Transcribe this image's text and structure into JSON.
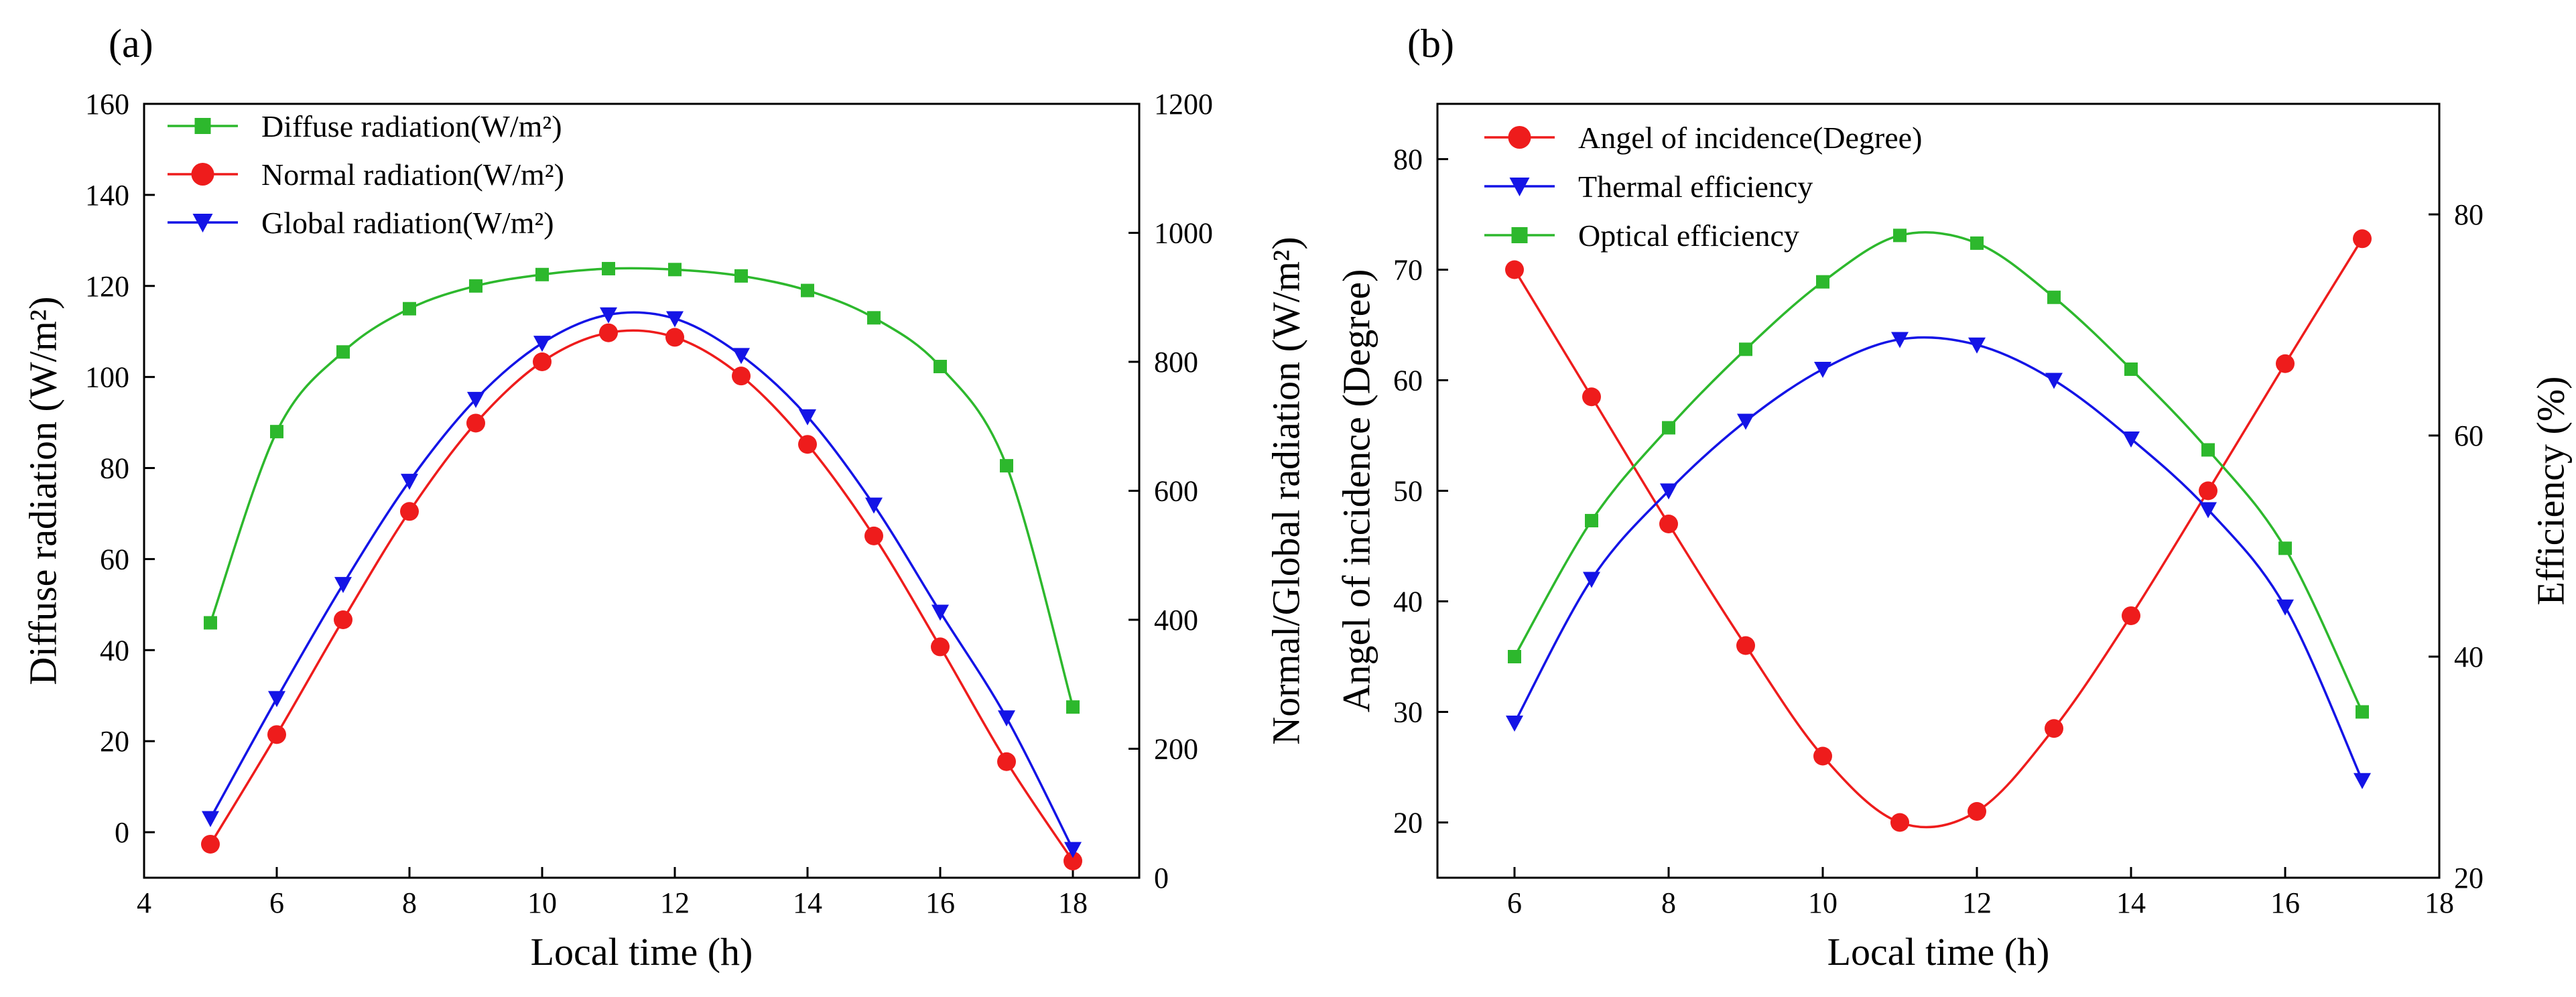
{
  "chart_data": [
    {
      "type": "line",
      "panel_label": "(a)",
      "xlabel": "Local time (h)",
      "ylabel_left": "Diffuse radiation (W/m²)",
      "ylabel_right": "Normal/Global radiation (W/m²)",
      "xlim": [
        4,
        19
      ],
      "ylim_left": [
        -10,
        160
      ],
      "ylim_right": [
        0,
        1200
      ],
      "xticks": [
        4,
        6,
        8,
        10,
        12,
        14,
        16,
        18
      ],
      "yticks_left": [
        0,
        20,
        40,
        60,
        80,
        100,
        120,
        140,
        160
      ],
      "yticks_right": [
        0,
        200,
        400,
        600,
        800,
        1000,
        1200
      ],
      "legend_position": "top-left",
      "series": [
        {
          "name": "Diffuse radiation(W/m²)",
          "axis": "left",
          "color": "#2db82d",
          "marker": "square",
          "x": [
            5,
            6,
            7,
            8,
            9,
            10,
            11,
            12,
            13,
            14,
            15,
            16,
            17,
            18
          ],
          "y": [
            46,
            88,
            105.5,
            115,
            120,
            122.5,
            123.8,
            123.6,
            122.2,
            119,
            113,
            102.3,
            80.5,
            27.5
          ]
        },
        {
          "name": "Normal radiation(W/m²)",
          "axis": "right",
          "color": "#ee1c1c",
          "marker": "circle",
          "x": [
            5,
            6,
            7,
            8,
            9,
            10,
            11,
            12,
            13,
            14,
            15,
            16,
            17,
            18
          ],
          "y": [
            52,
            222,
            400,
            568,
            705,
            800,
            845,
            838,
            778,
            672,
            530,
            358,
            180,
            26
          ]
        },
        {
          "name": "Global radiation(W/m²)",
          "axis": "right",
          "color": "#1414e6",
          "marker": "triangle-down",
          "x": [
            5,
            6,
            7,
            8,
            9,
            10,
            11,
            12,
            13,
            14,
            15,
            16,
            17,
            18
          ],
          "y": [
            92,
            278,
            455,
            615,
            742,
            829,
            873,
            867,
            810,
            715,
            578,
            412,
            248,
            44
          ]
        }
      ]
    },
    {
      "type": "line",
      "panel_label": "(b)",
      "xlabel": "Local time (h)",
      "ylabel_left": "Angel of incidence (Degree)",
      "ylabel_right": "Efficiency (%)",
      "xlim": [
        5,
        18
      ],
      "ylim_left": [
        15,
        85
      ],
      "ylim_right": [
        20,
        90
      ],
      "xticks": [
        6,
        8,
        10,
        12,
        14,
        16,
        18
      ],
      "yticks_left": [
        20,
        30,
        40,
        50,
        60,
        70,
        80
      ],
      "yticks_right": [
        20,
        40,
        60,
        80
      ],
      "legend_position": "top-left",
      "series": [
        {
          "name": "Angel of incidence(Degree)",
          "axis": "left",
          "color": "#ee1c1c",
          "marker": "circle",
          "x": [
            6,
            7,
            8,
            9,
            10,
            11,
            12,
            13,
            14,
            15,
            16,
            17
          ],
          "y": [
            70,
            58.5,
            47,
            36,
            26,
            20,
            21,
            28.5,
            38.7,
            50,
            61.5,
            72.8
          ]
        },
        {
          "name": "Thermal efficiency",
          "axis": "right",
          "color": "#1414e6",
          "marker": "triangle-down",
          "x": [
            6,
            7,
            8,
            9,
            10,
            11,
            12,
            13,
            14,
            15,
            16,
            17
          ],
          "y": [
            34,
            47,
            55,
            61.3,
            66,
            68.7,
            68.2,
            65,
            59.7,
            53.3,
            44.5,
            28.8
          ]
        },
        {
          "name": "Optical efficiency",
          "axis": "right",
          "color": "#2db82d",
          "marker": "square",
          "x": [
            6,
            7,
            8,
            9,
            10,
            11,
            12,
            13,
            14,
            15,
            16,
            17
          ],
          "y": [
            40,
            52.3,
            60.7,
            67.8,
            73.9,
            78.1,
            77.4,
            72.5,
            66,
            58.7,
            49.8,
            35
          ]
        }
      ]
    }
  ]
}
